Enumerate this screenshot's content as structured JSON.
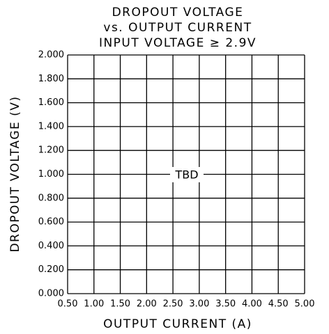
{
  "chart_data": {
    "type": "line",
    "title": [
      "DROPOUT VOLTAGE",
      "vs. OUTPUT CURRENT",
      "INPUT VOLTAGE ≥ 2.9V"
    ],
    "x_label": "OUTPUT CURRENT (A)",
    "y_label": "DROPOUT VOLTAGE (V)",
    "annotation": "TBD",
    "xlim": [
      0.5,
      5.0
    ],
    "xticks": [
      {
        "value": 0.5,
        "label": "0.50"
      },
      {
        "value": 1.0,
        "label": "1.00"
      },
      {
        "value": 1.5,
        "label": "1.50"
      },
      {
        "value": 2.0,
        "label": "2.00"
      },
      {
        "value": 2.5,
        "label": "2.50"
      },
      {
        "value": 3.0,
        "label": "3.00"
      },
      {
        "value": 3.5,
        "label": "3.50"
      },
      {
        "value": 4.0,
        "label": "4.00"
      },
      {
        "value": 4.5,
        "label": "4.50"
      },
      {
        "value": 5.0,
        "label": "5.00"
      }
    ],
    "ylim": [
      0,
      2.0
    ],
    "yticks": [
      {
        "value": 0,
        "label": "0.000"
      },
      {
        "value": 0.2,
        "label": "0.200"
      },
      {
        "value": 0.4,
        "label": "0.400"
      },
      {
        "value": 0.6,
        "label": "0.600"
      },
      {
        "value": 0.8,
        "label": "0.800"
      },
      {
        "value": 1.0,
        "label": "1.000"
      },
      {
        "value": 1.2,
        "label": "1.200"
      },
      {
        "value": 1.4,
        "label": "1.400"
      },
      {
        "value": 1.6,
        "label": "1.600"
      },
      {
        "value": 1.8,
        "label": "1.800"
      },
      {
        "value": 2.0,
        "label": "2.000"
      }
    ],
    "grid": true
  }
}
